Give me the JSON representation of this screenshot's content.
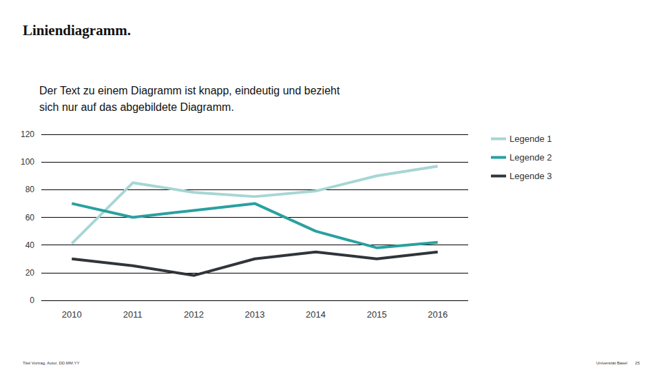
{
  "chart_data": {
    "type": "line",
    "title": "Liniendiagramm.",
    "subtitle": "Der Text zu einem Diagramm ist knapp, eindeutig und bezieht\nsich nur auf das abgebildete Diagramm.",
    "footer": [
      "Titel Vortrag, Autor, DD.MM.YY",
      "Universität Basel",
      "25"
    ],
    "categories": [
      "2010",
      "2011",
      "2012",
      "2013",
      "2014",
      "2015",
      "2016"
    ],
    "series": [
      {
        "name": "Legende 1",
        "color": "#a6d6d4",
        "values": [
          41,
          85,
          78,
          75,
          79,
          90,
          97
        ]
      },
      {
        "name": "Legende 2",
        "color": "#2aa0a0",
        "values": [
          70,
          60,
          65,
          70,
          50,
          38,
          42
        ]
      },
      {
        "name": "Legende 3",
        "color": "#30353a",
        "values": [
          30,
          25,
          18,
          30,
          35,
          30,
          35
        ]
      }
    ],
    "ylim": [
      0,
      120
    ],
    "yticks": [
      0,
      20,
      40,
      60,
      80,
      100,
      120
    ],
    "grid": true,
    "legend": "top-right"
  }
}
